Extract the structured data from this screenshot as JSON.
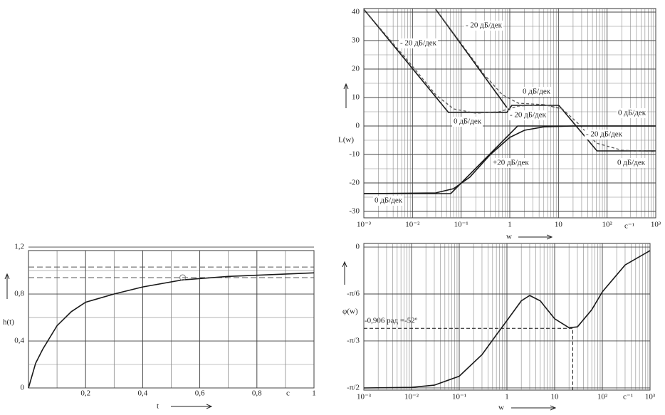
{
  "chart_data": [
    {
      "type": "line",
      "xscale": "log",
      "xlim": [
        0.001,
        1000
      ],
      "ylim": [
        -32.25,
        41.25
      ],
      "xticks": [
        {
          "value": 0.001,
          "label": "10⁻³"
        },
        {
          "value": 0.01,
          "label": "10⁻²"
        },
        {
          "value": 0.1,
          "label": "10⁻¹"
        },
        1,
        10,
        {
          "value": 100,
          "label": "10²"
        },
        {
          "value": 1000,
          "label": "10³"
        }
      ],
      "yticks": [
        40,
        30,
        20,
        10,
        0,
        -10,
        -20,
        -30
      ],
      "minor_ystep": 5,
      "grid": true,
      "ylabel": "L(w)",
      "xlabel": "w",
      "xunit": "с⁻¹",
      "annotations": [
        "- 20 дБ/дек",
        "- 20 дБ/дек",
        "0 дБ/дек",
        "- 20 дБ/дек",
        "0 дБ/дек",
        "0 дБ/дек",
        "- 20 дБ/дек",
        "+20 дБ/дек",
        "0 дБ/дек",
        "0 дБ/дек"
      ],
      "series": [
        {
          "color": "#1a1a1a",
          "style": "solid",
          "x": [
            0.001,
            0.055,
            0.87,
            1.1,
            10.2,
            62,
            1000
          ],
          "values": [
            41,
            4.75,
            4.75,
            7.25,
            7.25,
            -8.75,
            -8.75
          ]
        },
        {
          "color": "#1a1a1a",
          "style": "solid",
          "x": [
            0.03,
            0.87
          ],
          "values": [
            41,
            6.5
          ]
        },
        {
          "color": "#1a1a1a",
          "style": "solid",
          "x": [
            0.001,
            0.061,
            1.45,
            1000
          ],
          "values": [
            -23.75,
            -23.75,
            0,
            0
          ]
        },
        {
          "color": "#555555",
          "style": "dashed",
          "x": [
            0.001,
            0.01,
            0.03,
            0.07,
            0.2,
            0.6,
            1.5,
            5,
            12,
            25,
            60,
            200,
            1000
          ],
          "values": [
            41,
            21,
            11,
            6,
            4.5,
            5,
            7,
            7.5,
            6,
            1,
            -6,
            -8.5,
            -9
          ]
        },
        {
          "color": "#555555",
          "style": "dashed",
          "x": [
            0.03,
            0.1,
            0.3,
            0.7,
            1.5,
            5,
            12
          ],
          "values": [
            41,
            29,
            18,
            11,
            8,
            7.5,
            6
          ]
        },
        {
          "color": "#1a1a1a",
          "style": "solid",
          "x": [
            0.001,
            0.03,
            0.07,
            0.15,
            0.4,
            1,
            2,
            5,
            20,
            1000
          ],
          "values": [
            -23.75,
            -23.5,
            -22,
            -18,
            -10,
            -4,
            -1.5,
            -0.3,
            0,
            0
          ]
        }
      ]
    },
    {
      "type": "line",
      "xscale": "log",
      "xlim": [
        0.001,
        1000
      ],
      "ylim": [
        -1.595,
        0.04
      ],
      "xticks": [
        {
          "value": 0.001,
          "label": "10⁻³"
        },
        {
          "value": 0.01,
          "label": "10⁻²"
        },
        {
          "value": 0.1,
          "label": "10⁻¹"
        },
        1,
        10,
        {
          "value": 100,
          "label": "10²"
        },
        {
          "value": 1000,
          "label": "10³"
        }
      ],
      "yticks": [
        0,
        {
          "value": -0.5236,
          "label": "-π/6"
        },
        {
          "value": -1.0472,
          "label": "-π/3"
        },
        {
          "value": -1.5708,
          "label": "-π/2"
        }
      ],
      "grid": true,
      "ylabel": "φ(w)",
      "xlabel": "w",
      "xunit": "с⁻¹",
      "annotation": "-0,906 рад =-52º",
      "marker": {
        "x": 24,
        "y": -0.906
      },
      "series": [
        {
          "color": "#1a1a1a",
          "style": "solid",
          "x": [
            0.001,
            0.01,
            0.03,
            0.1,
            0.3,
            0.6,
            1,
            2,
            3,
            5,
            10,
            20,
            30,
            60,
            100,
            300,
            1000
          ],
          "values": [
            -1.571,
            -1.565,
            -1.54,
            -1.44,
            -1.2,
            -0.98,
            -0.82,
            -0.6,
            -0.54,
            -0.6,
            -0.8,
            -0.9,
            -0.89,
            -0.7,
            -0.5,
            -0.2,
            -0.04
          ]
        }
      ]
    },
    {
      "type": "line",
      "xlim": [
        0,
        1
      ],
      "ylim": [
        0,
        1.17
      ],
      "xticks": [
        {
          "value": 0.2,
          "label": "0,2"
        },
        {
          "value": 0.4,
          "label": "0,4"
        },
        {
          "value": 0.6,
          "label": "0,6"
        },
        {
          "value": 0.8,
          "label": "0,8"
        },
        1
      ],
      "yticks": [
        0,
        {
          "value": 0.4,
          "label": "0,4"
        },
        {
          "value": 0.8,
          "label": "0,8"
        },
        {
          "value": 1.2,
          "label": "1,2"
        }
      ],
      "minor_xstep": 0.1,
      "minor_ystep": 0.2,
      "grid": true,
      "ylabel": "h(t)",
      "xlabel": "t",
      "xunit": "с",
      "reference_lines": [
        1.03,
        0.94
      ],
      "marker": {
        "x": 0.54,
        "y": 0.94
      },
      "series": [
        {
          "color": "#1a1a1a",
          "style": "solid",
          "x": [
            0,
            0.025,
            0.05,
            0.1,
            0.15,
            0.2,
            0.3,
            0.4,
            0.54,
            0.7,
            0.85,
            1
          ],
          "values": [
            0,
            0.21,
            0.33,
            0.53,
            0.65,
            0.73,
            0.8,
            0.86,
            0.92,
            0.95,
            0.965,
            0.98
          ]
        }
      ]
    }
  ]
}
